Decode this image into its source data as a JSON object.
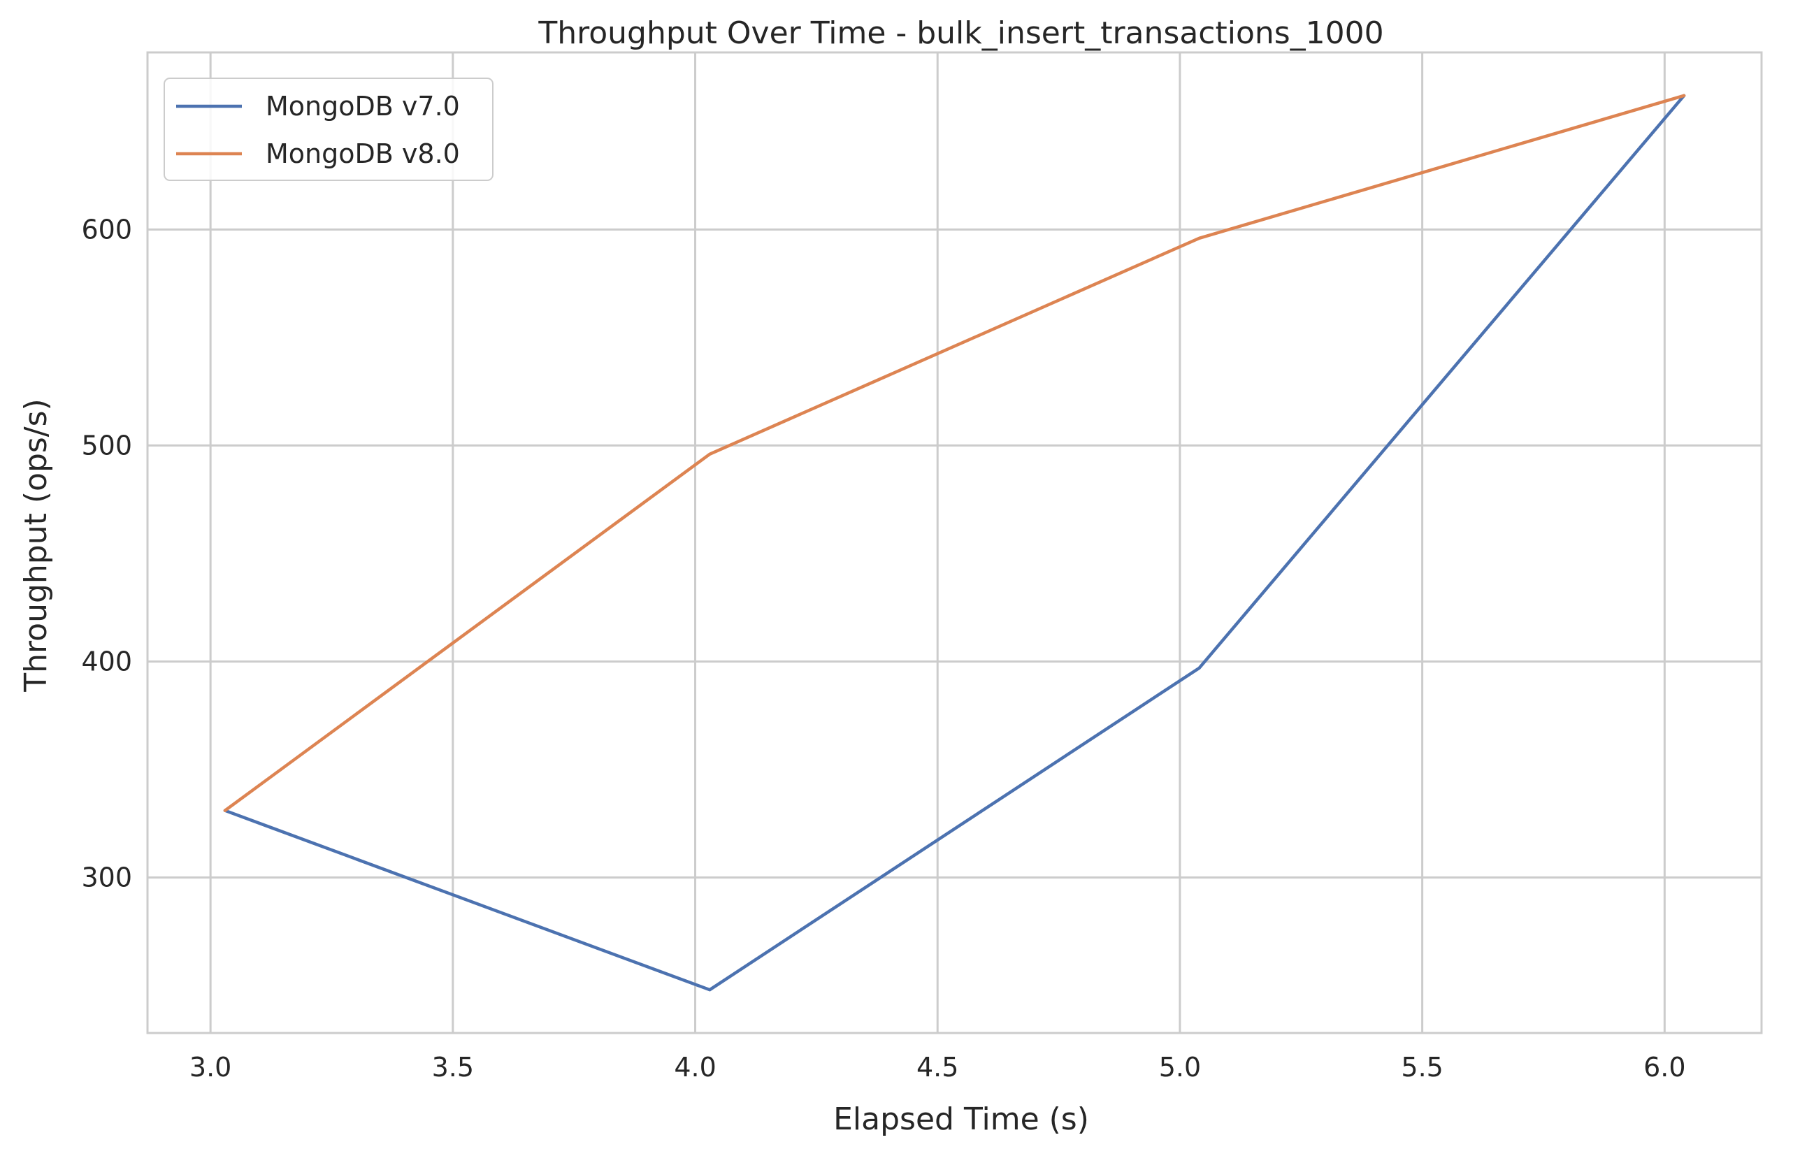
{
  "chart_data": {
    "type": "line",
    "title": "Throughput Over Time - bulk_insert_transactions_1000",
    "xlabel": "Elapsed Time (s)",
    "ylabel": "Throughput (ops/s)",
    "xlim": [
      2.87,
      6.2
    ],
    "ylim": [
      228,
      682
    ],
    "xticks": [
      3.0,
      3.5,
      4.0,
      4.5,
      5.0,
      5.5,
      6.0
    ],
    "xtick_labels": [
      "3.0",
      "3.5",
      "4.0",
      "4.5",
      "5.0",
      "5.5",
      "6.0"
    ],
    "yticks": [
      300,
      400,
      500,
      600
    ],
    "ytick_labels": [
      "300",
      "400",
      "500",
      "600"
    ],
    "grid": true,
    "legend_position": "top-left",
    "series": [
      {
        "name": "MongoDB v7.0",
        "color": "#4c72b0",
        "x": [
          3.03,
          4.03,
          5.04,
          6.04
        ],
        "y": [
          331,
          248,
          397,
          662
        ]
      },
      {
        "name": "MongoDB v8.0",
        "color": "#dd8452",
        "x": [
          3.03,
          4.03,
          5.04,
          6.04
        ],
        "y": [
          331,
          496,
          596,
          662
        ]
      }
    ]
  }
}
